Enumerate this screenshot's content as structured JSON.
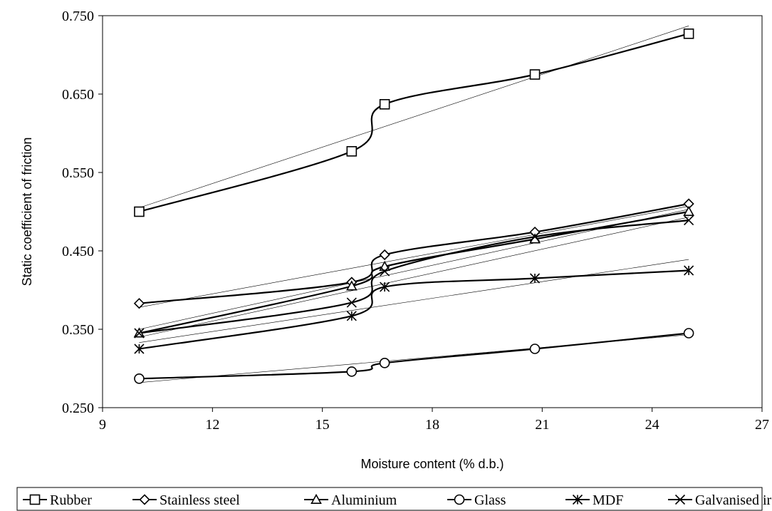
{
  "chart_data": {
    "type": "line",
    "title": "",
    "xlabel": "Moisture content (% d.b.)",
    "ylabel": "Static coefficient of friction",
    "xlim": [
      9,
      27
    ],
    "ylim": [
      0.25,
      0.75
    ],
    "xticks": [
      "9",
      "12",
      "15",
      "18",
      "21",
      "24",
      "27"
    ],
    "yticks": [
      "0.250",
      "0.350",
      "0.450",
      "0.550",
      "0.650",
      "0.750"
    ],
    "grid": false,
    "legend_position": "bottom",
    "x": [
      10.0,
      15.8,
      16.7,
      20.8,
      25.0
    ],
    "series": [
      {
        "name": "Rubber",
        "marker": "square",
        "values": [
          0.5,
          0.577,
          0.637,
          0.675,
          0.727
        ],
        "trend": [
          0.505,
          0.737
        ]
      },
      {
        "name": "Stainless steel",
        "marker": "diamond",
        "values": [
          0.383,
          0.41,
          0.445,
          0.474,
          0.51
        ],
        "trend": [
          0.378,
          0.507
        ]
      },
      {
        "name": "Aluminium",
        "marker": "triangle",
        "values": [
          0.345,
          0.405,
          0.43,
          0.465,
          0.5
        ],
        "trend": [
          0.35,
          0.503
        ]
      },
      {
        "name": "Glass",
        "marker": "circle",
        "values": [
          0.287,
          0.296,
          0.307,
          0.325,
          0.345
        ],
        "trend": [
          0.282,
          0.343
        ]
      },
      {
        "name": "MDF",
        "marker": "asterisk",
        "values": [
          0.325,
          0.367,
          0.404,
          0.415,
          0.425
        ],
        "trend": [
          0.333,
          0.439
        ]
      },
      {
        "name": "Galvanised iron",
        "marker": "x",
        "values": [
          0.345,
          0.384,
          0.424,
          0.468,
          0.489
        ],
        "trend": [
          0.34,
          0.493
        ]
      }
    ]
  }
}
